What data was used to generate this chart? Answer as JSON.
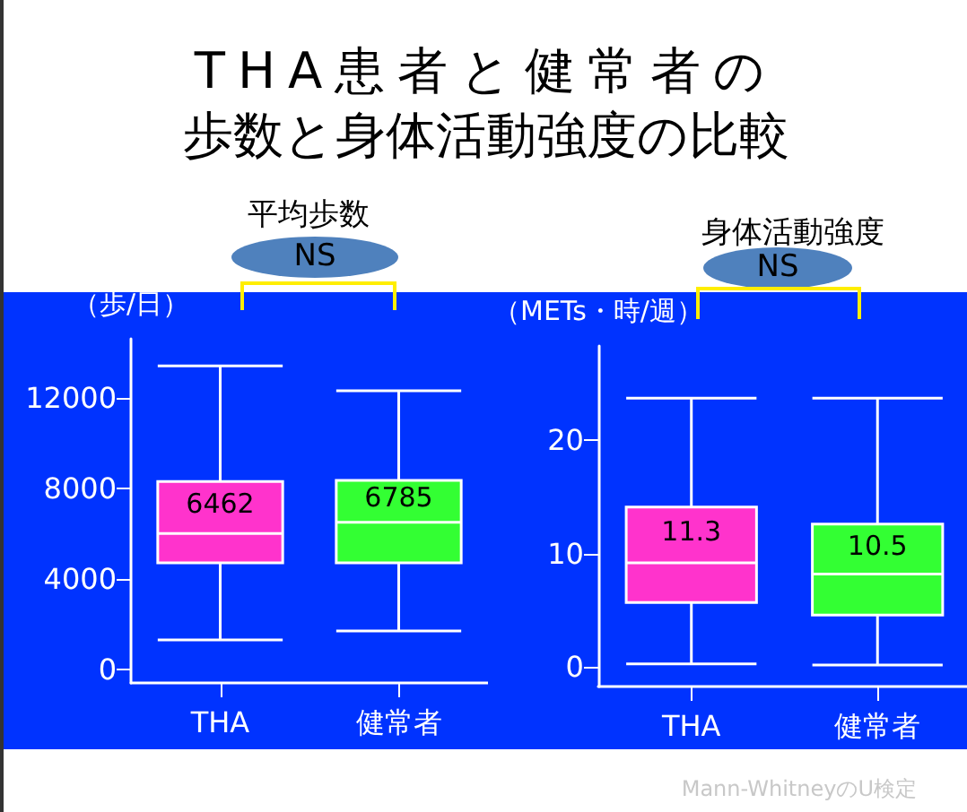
{
  "chart_data": [
    {
      "type": "box",
      "title": "THA患者と健常者の歩数と身体活動強度の比較",
      "subtitle": "平均歩数",
      "ylabel": "（歩/日）",
      "categories": [
        "THA",
        "健常者"
      ],
      "colors": [
        "#ff33cc",
        "#33ff33"
      ],
      "boxes": [
        {
          "low": 1300,
          "q1": 4700,
          "median": 6000,
          "q3": 8300,
          "high": 13400
        },
        {
          "low": 1700,
          "q1": 4700,
          "median": 6500,
          "q3": 8350,
          "high": 12300
        }
      ],
      "ylim": [
        -600,
        14600
      ],
      "yticks": [
        0,
        4000,
        8000,
        12000
      ],
      "grid": false,
      "annotations": [
        "NS",
        "6462",
        "6785"
      ]
    },
    {
      "type": "box",
      "subtitle": "身体活動強度",
      "ylabel": "（METs・時/週）",
      "categories": [
        "THA",
        "健常者"
      ],
      "colors": [
        "#ff33cc",
        "#33ff33"
      ],
      "boxes": [
        {
          "low": 0.3,
          "q1": 5.7,
          "median": 9.2,
          "q3": 14.1,
          "high": 23.7
        },
        {
          "low": 0.2,
          "q1": 4.6,
          "median": 8.2,
          "q3": 12.6,
          "high": 23.7
        }
      ],
      "ylim": [
        -1.7,
        28.3
      ],
      "yticks": [
        0,
        10,
        20
      ],
      "grid": false,
      "annotations": [
        "NS",
        "11.3",
        "10.5",
        "Mann-WhitneyのU検定"
      ]
    }
  ]
}
